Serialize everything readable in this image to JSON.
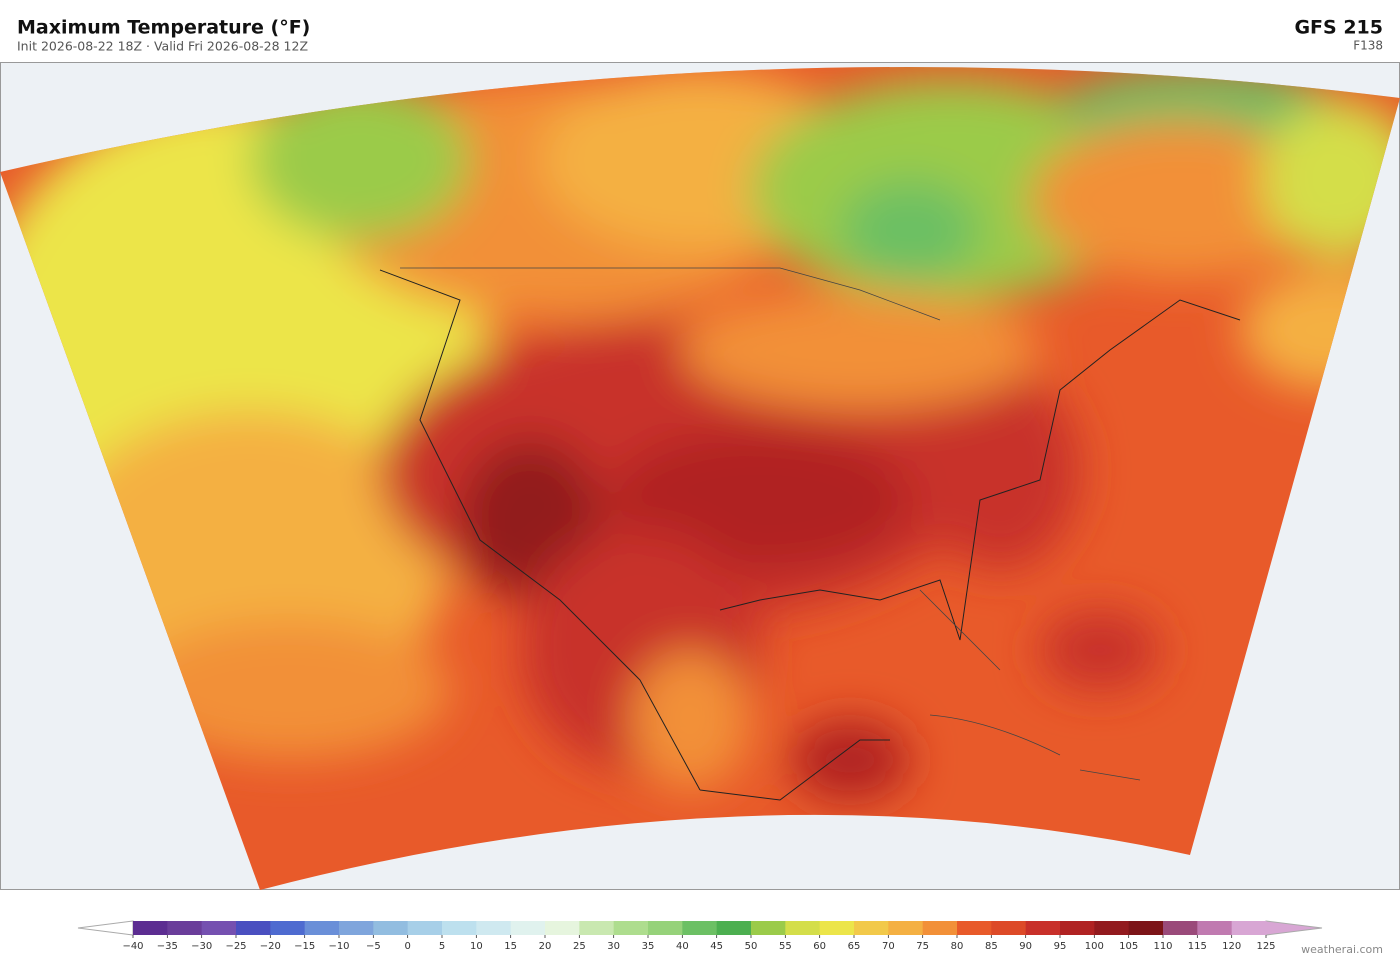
{
  "header": {
    "title": "Maximum Temperature  (°F)",
    "subtitle": "Init 2026-08-22 18Z  ·  Valid Fri 2026-08-28 12Z",
    "model": "GFS  215",
    "forecast_hour": "F138"
  },
  "colorbar": {
    "ticks": [
      {
        "value": -40,
        "label": "−40"
      },
      {
        "value": -35,
        "label": "−35"
      },
      {
        "value": -30,
        "label": "−30"
      },
      {
        "value": -25,
        "label": "−25"
      },
      {
        "value": -20,
        "label": "−20"
      },
      {
        "value": -15,
        "label": "−15"
      },
      {
        "value": -10,
        "label": "−10"
      },
      {
        "value": -5,
        "label": "−5"
      },
      0,
      5,
      10,
      15,
      20,
      25,
      30,
      35,
      40,
      45,
      50,
      55,
      60,
      65,
      70,
      75,
      80,
      85,
      90,
      95,
      100,
      105,
      110,
      115,
      120,
      125
    ],
    "colors": [
      "#5c2d91",
      "#6a3d9a",
      "#7550b0",
      "#4a4fc0",
      "#4e6bd0",
      "#6a8fd8",
      "#7fa5dc",
      "#92bde0",
      "#a7cfe8",
      "#bde0ee",
      "#cfe9f0",
      "#e0f2ee",
      "#e6f5de",
      "#c9e8b0",
      "#aedd8e",
      "#96d27a",
      "#6cc064",
      "#4caf50",
      "#9bcb4a",
      "#d4de4a",
      "#ece54a",
      "#f2c94a",
      "#f4b043",
      "#f29038",
      "#e85a2a",
      "#dd4a28",
      "#c8302a",
      "#b02222",
      "#921a1e",
      "#7c1418",
      "#9a4a7a",
      "#c07ab0",
      "#d8a6d4"
    ]
  },
  "footer": {
    "credit": "weatherai.com"
  }
}
